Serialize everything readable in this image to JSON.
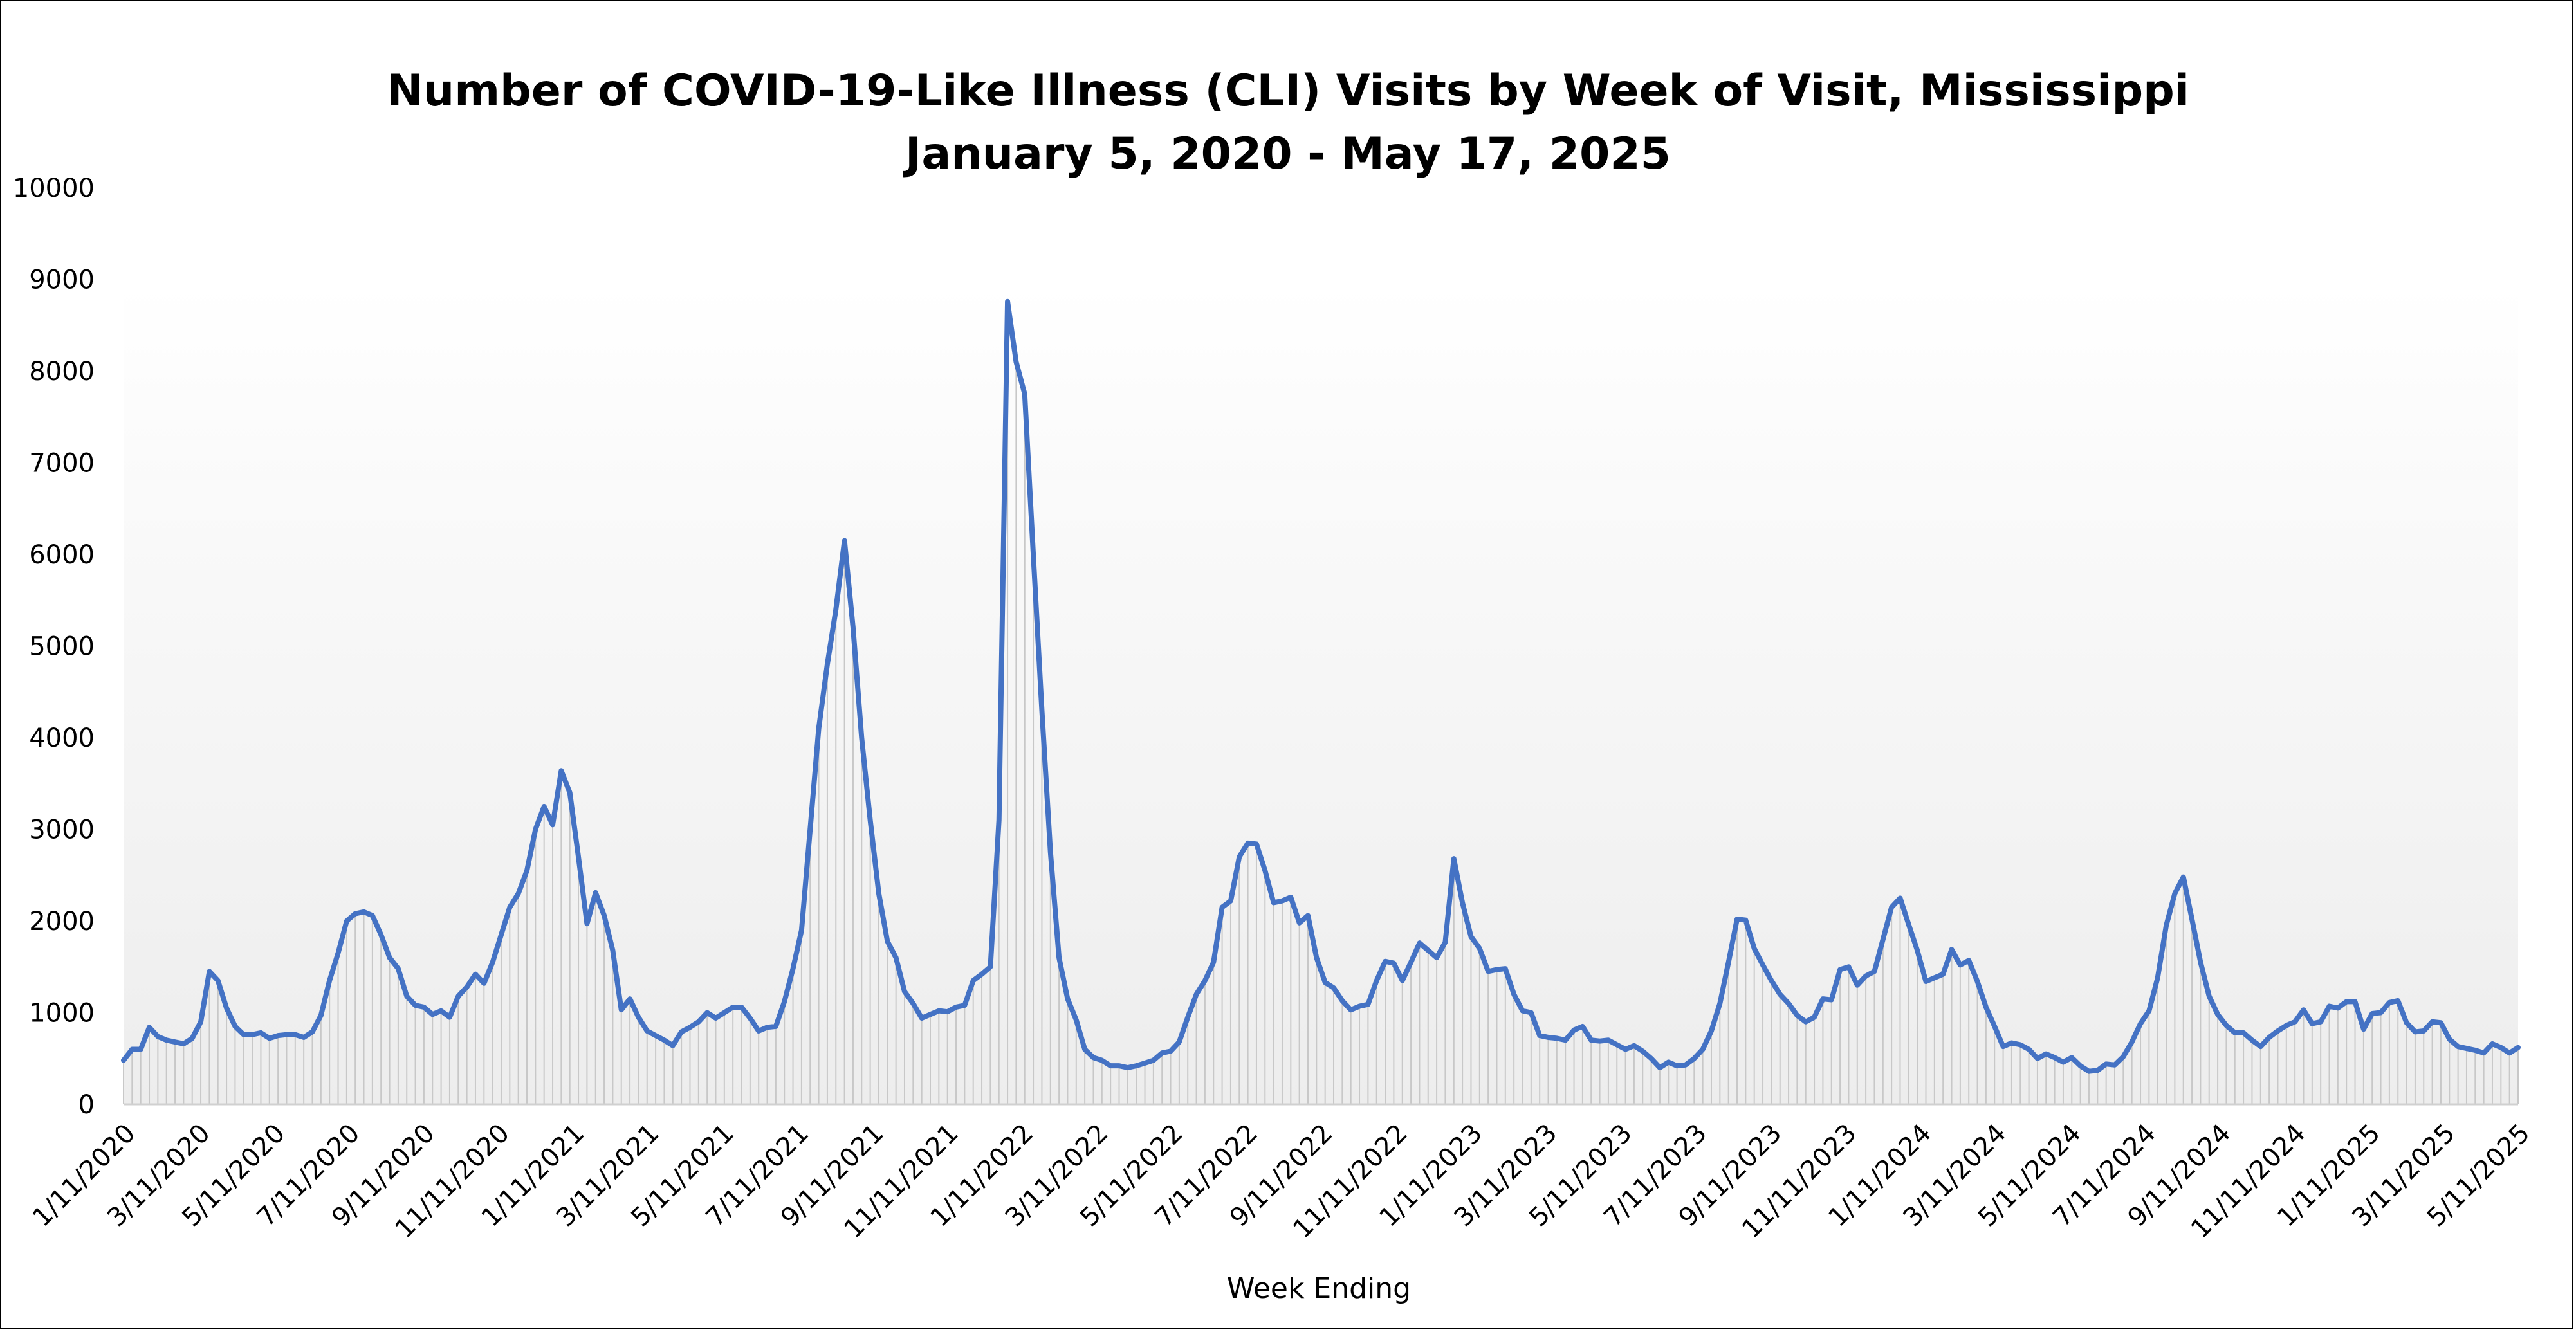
{
  "chart_data": {
    "type": "area",
    "title": "Number of COVID-19-Like Illness (CLI) Visits by Week of Visit, Mississippi",
    "subtitle": "January 5, 2020 - May 17, 2025",
    "xlabel": "Week Ending",
    "ylabel": "",
    "ylim": [
      0,
      10000
    ],
    "y_ticks": [
      "0",
      "1000",
      "2000",
      "3000",
      "4000",
      "5000",
      "6000",
      "7000",
      "8000",
      "9000",
      "10000"
    ],
    "x_tick_labels": [
      "1/11/2020",
      "3/11/2020",
      "5/11/2020",
      "7/11/2020",
      "9/11/2020",
      "11/11/2020",
      "1/11/2021",
      "3/11/2021",
      "5/11/2021",
      "7/11/2021",
      "9/11/2021",
      "11/11/2021",
      "1/11/2022",
      "3/11/2022",
      "5/11/2022",
      "7/11/2022",
      "9/11/2022",
      "11/11/2022",
      "1/11/2023",
      "3/11/2023",
      "5/11/2023",
      "7/11/2023",
      "9/11/2023",
      "11/11/2023",
      "1/11/2024",
      "3/11/2024",
      "5/11/2024",
      "7/11/2024",
      "9/11/2024",
      "11/11/2024",
      "1/11/2025",
      "3/11/2025",
      "5/11/2025"
    ],
    "grid": false,
    "legend": "none",
    "line_color": "#4472C4",
    "fill_line_color": "#c8c8c8",
    "series": [
      {
        "values": [
          480,
          600,
          600,
          840,
          740,
          700,
          680,
          660,
          720,
          900,
          1450,
          1350,
          1050,
          850,
          760,
          760,
          780,
          720,
          750,
          760,
          760,
          730,
          790,
          970,
          1350,
          1650,
          2000,
          2080,
          2100,
          2060,
          1850,
          1600,
          1480,
          1180,
          1080,
          1060,
          980,
          1020,
          950,
          1180,
          1280,
          1420,
          1320,
          1550,
          1850,
          2150,
          2300,
          2550,
          3000,
          3250,
          3050,
          3640,
          3400,
          2700,
          1970,
          2310,
          2060,
          1680,
          1030,
          1150,
          950,
          800,
          750,
          700,
          640,
          790,
          840,
          900,
          1000,
          940,
          1000,
          1060,
          1060,
          940,
          800,
          840,
          850,
          1120,
          1480,
          1900,
          3000,
          4100,
          4800,
          5400,
          6150,
          5200,
          4000,
          3100,
          2300,
          1780,
          1600,
          1230,
          1100,
          940,
          980,
          1020,
          1010,
          1060,
          1080,
          1350,
          1420,
          1500,
          3100,
          8760,
          8100,
          7750,
          6000,
          4300,
          2750,
          1600,
          1150,
          920,
          600,
          510,
          480,
          420,
          420,
          400,
          420,
          450,
          480,
          560,
          580,
          680,
          950,
          1200,
          1350,
          1550,
          2150,
          2220,
          2700,
          2850,
          2840,
          2550,
          2200,
          2220,
          2260,
          1980,
          2060,
          1600,
          1330,
          1270,
          1130,
          1030,
          1070,
          1090,
          1350,
          1560,
          1540,
          1350,
          1550,
          1760,
          1680,
          1600,
          1770,
          2680,
          2200,
          1830,
          1700,
          1450,
          1470,
          1480,
          1200,
          1020,
          1000,
          750,
          730,
          720,
          700,
          810,
          850,
          700,
          690,
          700,
          650,
          600,
          640,
          580,
          500,
          400,
          460,
          420,
          430,
          500,
          600,
          800,
          1100,
          1550,
          2020,
          2010,
          1700,
          1520,
          1350,
          1200,
          1100,
          970,
          900,
          950,
          1150,
          1140,
          1470,
          1500,
          1300,
          1400,
          1450,
          1800,
          2150,
          2250,
          1960,
          1680,
          1340,
          1380,
          1420,
          1690,
          1520,
          1570,
          1340,
          1060,
          850,
          630,
          670,
          650,
          600,
          500,
          550,
          510,
          460,
          510,
          420,
          360,
          370,
          440,
          430,
          520,
          680,
          880,
          1020,
          1380,
          1950,
          2300,
          2480,
          2020,
          1550,
          1180,
          980,
          860,
          780,
          780,
          700,
          630,
          730,
          800,
          860,
          900,
          1030,
          880,
          900,
          1070,
          1050,
          1120,
          1120,
          820,
          990,
          1000,
          1110,
          1130,
          890,
          790,
          800,
          900,
          890,
          710,
          630,
          610,
          590,
          560,
          660,
          620,
          560,
          620
        ]
      }
    ]
  }
}
